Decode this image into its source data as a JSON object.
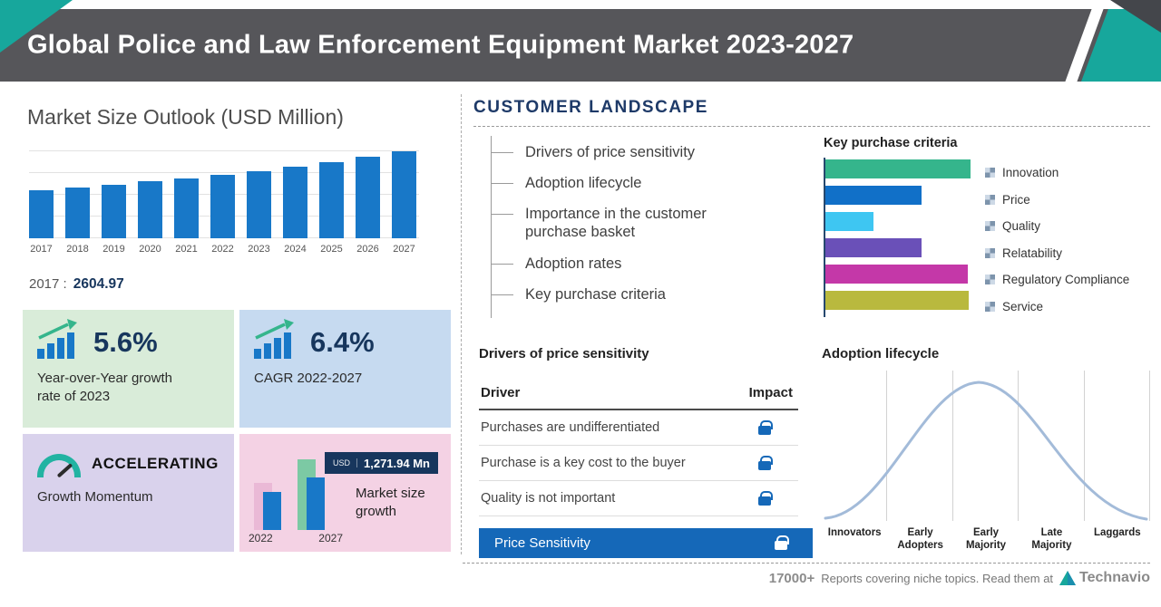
{
  "header": {
    "title": "Global Police and Law Enforcement Equipment Market 2023-2027"
  },
  "market_size": {
    "title": "Market Size Outlook (USD Million)",
    "base_year_label": "2017 :",
    "base_year_value": "2604.97"
  },
  "cards": {
    "yoy": {
      "value": "5.6%",
      "label": "Year-over-Year growth rate of 2023"
    },
    "cagr": {
      "value": "6.4%",
      "label": "CAGR 2022-2027"
    },
    "momentum": {
      "value": "ACCELERATING",
      "label": "Growth Momentum"
    },
    "growth": {
      "badge_currency": "USD",
      "badge_value": "1,271.94 Mn",
      "label": "Market size growth",
      "year_start": "2022",
      "year_end": "2027"
    }
  },
  "customer_landscape": {
    "title": "CUSTOMER LANDSCAPE",
    "items": [
      "Drivers of price sensitivity",
      "Adoption lifecycle",
      "Importance in the customer purchase basket",
      "Adoption rates",
      "Key purchase criteria"
    ]
  },
  "price_sensitivity": {
    "title": "Drivers of price sensitivity",
    "columns": {
      "driver": "Driver",
      "impact": "Impact"
    },
    "rows": [
      "Purchases are undifferentiated",
      "Purchase is a key cost to the buyer",
      "Quality is not important"
    ],
    "highlight_label": "Price Sensitivity"
  },
  "footer": {
    "count": "17000+",
    "text": "Reports covering niche topics. Read them at",
    "brand": "Technavio"
  },
  "colors": {
    "accent_teal": "#17a79c",
    "bar_blue": "#1878c8",
    "navy": "#17365d",
    "highlight_blue": "#1568b8",
    "header_gray": "#56565a"
  },
  "chart_data": [
    {
      "type": "bar",
      "title": "Market Size Outlook (USD Million)",
      "categories": [
        "2017",
        "2018",
        "2019",
        "2020",
        "2021",
        "2022",
        "2023",
        "2024",
        "2025",
        "2026",
        "2027"
      ],
      "values": [
        2604.97,
        2761,
        2927,
        3103,
        3290,
        3490.5,
        3686,
        3930,
        4190,
        4467,
        4762.4
      ],
      "ylabel": "USD Million",
      "ylim": [
        0,
        5000
      ],
      "grid": true,
      "bar_color": "#1878c8",
      "annotation": "Only 2017 (2604.97) labeled; later values estimated from 5.6% YoY (2023), 6.4% CAGR (2022-2027), growth 2022-2027 = USD 1,271.94 Mn"
    },
    {
      "type": "bar",
      "orientation": "horizontal",
      "title": "Key purchase criteria",
      "categories": [
        "Innovation",
        "Price",
        "Quality",
        "Relatability",
        "Regulatory Compliance",
        "Service"
      ],
      "values": [
        100,
        66,
        33,
        66,
        98,
        99
      ],
      "colors": [
        "#35b58c",
        "#1170c8",
        "#3ec6f2",
        "#6a50b8",
        "#c438a8",
        "#b9b93e"
      ],
      "legend_position": "right",
      "annotation": "Relative bar lengths estimated; no numeric axis shown"
    },
    {
      "type": "bar",
      "title": "Market size growth",
      "categories": [
        "2022",
        "2027"
      ],
      "annotation": "Decorative mini chart; growth between years is USD 1,271.94 Mn"
    },
    {
      "type": "area",
      "title": "Adoption lifecycle",
      "categories": [
        "Innovators",
        "Early Adopters",
        "Early Majority",
        "Late Majority",
        "Laggards"
      ],
      "annotation": "Bell curve over adopter categories; no numeric axes"
    }
  ]
}
